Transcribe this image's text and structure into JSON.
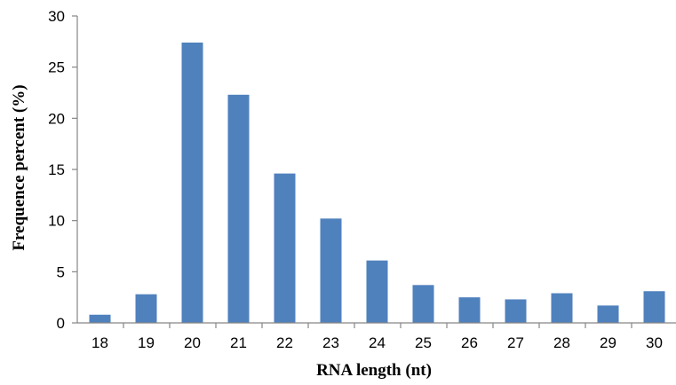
{
  "chart_data": {
    "type": "bar",
    "categories": [
      "18",
      "19",
      "20",
      "21",
      "22",
      "23",
      "24",
      "25",
      "26",
      "27",
      "28",
      "29",
      "30"
    ],
    "values": [
      0.8,
      2.8,
      27.4,
      22.3,
      14.6,
      10.2,
      6.1,
      3.7,
      2.5,
      2.3,
      2.9,
      1.7,
      3.1
    ],
    "title": "",
    "xlabel": "RNA length (nt)",
    "ylabel": "Frequence percent (%)",
    "ylim": [
      0,
      30
    ],
    "yticks": [
      0,
      5,
      10,
      15,
      20,
      25,
      30
    ],
    "grid": false,
    "legend": "none",
    "colors": {
      "bar": "#4f81bd",
      "axis": "#868686"
    }
  }
}
